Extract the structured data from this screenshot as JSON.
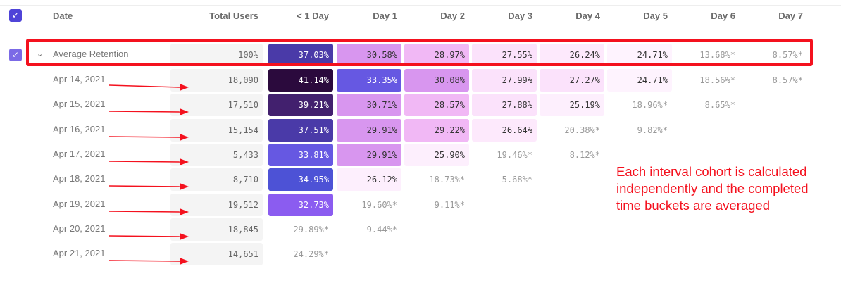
{
  "header": {
    "date": "Date",
    "total_users": "Total Users",
    "days": [
      "< 1 Day",
      "Day 1",
      "Day 2",
      "Day 3",
      "Day 4",
      "Day 5",
      "Day 6",
      "Day 7"
    ]
  },
  "average": {
    "label": "Average Retention",
    "total": "100%",
    "values": [
      "37.03%",
      "30.58%",
      "28.97%",
      "27.55%",
      "26.24%",
      "24.71%",
      "13.68%*",
      "8.57%*"
    ]
  },
  "rows": [
    {
      "date": "Apr 14, 2021",
      "total": "18,090",
      "values": [
        "41.14%",
        "33.35%",
        "30.08%",
        "27.99%",
        "27.27%",
        "24.71%",
        "18.56%*",
        "8.57%*"
      ]
    },
    {
      "date": "Apr 15, 2021",
      "total": "17,510",
      "values": [
        "39.21%",
        "30.71%",
        "28.57%",
        "27.88%",
        "25.19%",
        "18.96%*",
        "8.65%*"
      ]
    },
    {
      "date": "Apr 16, 2021",
      "total": "15,154",
      "values": [
        "37.51%",
        "29.91%",
        "29.22%",
        "26.64%",
        "20.38%*",
        "9.82%*"
      ]
    },
    {
      "date": "Apr 17, 2021",
      "total": "5,433",
      "values": [
        "33.81%",
        "29.91%",
        "25.90%",
        "19.46%*",
        "8.12%*"
      ]
    },
    {
      "date": "Apr 18, 2021",
      "total": "8,710",
      "values": [
        "34.95%",
        "26.12%",
        "18.73%*",
        "5.68%*"
      ]
    },
    {
      "date": "Apr 19, 2021",
      "total": "19,512",
      "values": [
        "32.73%",
        "19.60%*",
        "9.11%*"
      ]
    },
    {
      "date": "Apr 20, 2021",
      "total": "18,845",
      "values": [
        "29.89%*",
        "9.44%*"
      ]
    },
    {
      "date": "Apr 21, 2021",
      "total": "14,651",
      "values": [
        "24.29%*"
      ]
    }
  ],
  "annotation": "Each interval cohort is calculated independently and the completed time buckets are averaged",
  "colors": {
    "accent": "#4f44d8",
    "highlight": "#f4111e"
  },
  "color_scale": [
    {
      "min": 40,
      "bg": "#2b0a3d",
      "fg": "#ffffff"
    },
    {
      "min": 38.5,
      "bg": "#42206e",
      "fg": "#ffffff"
    },
    {
      "min": 36,
      "bg": "#4a3aa8",
      "fg": "#ffffff"
    },
    {
      "min": 34.5,
      "bg": "#4d52d6",
      "fg": "#ffffff"
    },
    {
      "min": 33,
      "bg": "#6658e2",
      "fg": "#ffffff"
    },
    {
      "min": 32,
      "bg": "#8b5cf0",
      "fg": "#ffffff"
    },
    {
      "min": 29.5,
      "bg": "#d896ef",
      "fg": "#333333"
    },
    {
      "min": 28,
      "bg": "#f1b8f5",
      "fg": "#333333"
    },
    {
      "min": 27,
      "bg": "#fbe2fb",
      "fg": "#333333"
    },
    {
      "min": 26.2,
      "bg": "#fde9fc",
      "fg": "#333333"
    },
    {
      "min": 25,
      "bg": "#fdeffd",
      "fg": "#333333"
    },
    {
      "min": 0,
      "bg": "#fef3fe",
      "fg": "#333333"
    }
  ]
}
